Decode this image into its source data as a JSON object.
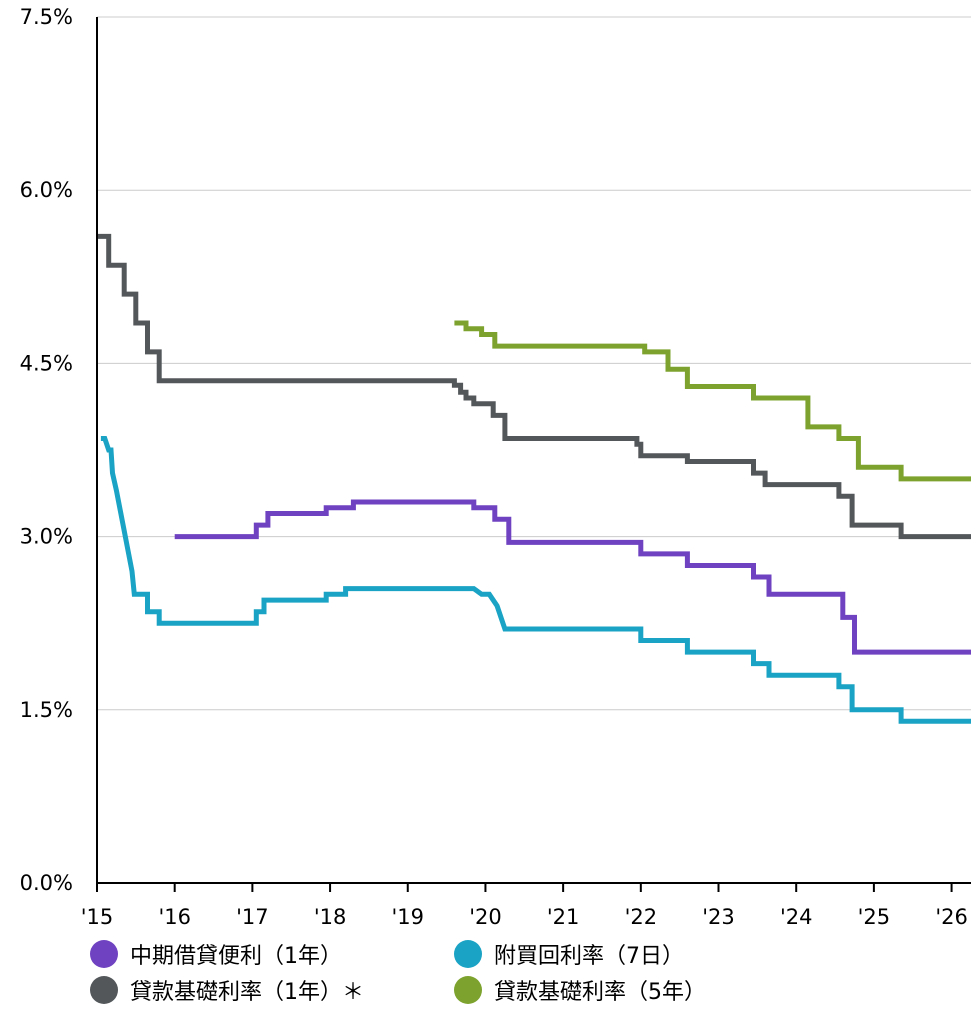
{
  "chart_data": {
    "type": "line",
    "ylim": [
      0,
      7.5
    ],
    "yticks": [
      {
        "value": 0,
        "label": "0.0%"
      },
      {
        "value": 1.5,
        "label": "1.5%"
      },
      {
        "value": 3.0,
        "label": "3.0%"
      },
      {
        "value": 4.5,
        "label": "4.5%"
      },
      {
        "value": 6.0,
        "label": "6.0%"
      },
      {
        "value": 7.5,
        "label": "7.5%"
      }
    ],
    "xlim": [
      2015.0,
      2026.25
    ],
    "xticks": [
      {
        "value": 2015,
        "label": "'15"
      },
      {
        "value": 2016,
        "label": "'16"
      },
      {
        "value": 2017,
        "label": "'17"
      },
      {
        "value": 2018,
        "label": "'18"
      },
      {
        "value": 2019,
        "label": "'19"
      },
      {
        "value": 2020,
        "label": "'20"
      },
      {
        "value": 2021,
        "label": "'21"
      },
      {
        "value": 2022,
        "label": "'22"
      },
      {
        "value": 2023,
        "label": "'23"
      },
      {
        "value": 2024,
        "label": "'24"
      },
      {
        "value": 2025,
        "label": "'25"
      },
      {
        "value": 2026,
        "label": "'26"
      }
    ],
    "grid": "horizontal",
    "legend_position": "bottom",
    "series": [
      {
        "name": "中期借貸便利（1年）",
        "color": "#6f42c1",
        "points": [
          [
            2016.0,
            3.0
          ],
          [
            2017.05,
            3.0
          ],
          [
            2017.05,
            3.1
          ],
          [
            2017.2,
            3.1
          ],
          [
            2017.2,
            3.2
          ],
          [
            2017.95,
            3.2
          ],
          [
            2017.95,
            3.25
          ],
          [
            2018.3,
            3.25
          ],
          [
            2018.3,
            3.3
          ],
          [
            2019.85,
            3.3
          ],
          [
            2019.85,
            3.25
          ],
          [
            2020.12,
            3.25
          ],
          [
            2020.12,
            3.15
          ],
          [
            2020.3,
            3.15
          ],
          [
            2020.3,
            2.95
          ],
          [
            2022.0,
            2.95
          ],
          [
            2022.0,
            2.85
          ],
          [
            2022.6,
            2.85
          ],
          [
            2022.6,
            2.75
          ],
          [
            2023.45,
            2.75
          ],
          [
            2023.45,
            2.65
          ],
          [
            2023.65,
            2.65
          ],
          [
            2023.65,
            2.5
          ],
          [
            2024.6,
            2.5
          ],
          [
            2024.6,
            2.3
          ],
          [
            2024.75,
            2.3
          ],
          [
            2024.75,
            2.0
          ],
          [
            2026.25,
            2.0
          ]
        ]
      },
      {
        "name": "附買回利率（7日）",
        "color": "#1aa3c4",
        "points": [
          [
            2015.05,
            3.85
          ],
          [
            2015.1,
            3.85
          ],
          [
            2015.15,
            3.75
          ],
          [
            2015.18,
            3.75
          ],
          [
            2015.2,
            3.55
          ],
          [
            2015.25,
            3.4
          ],
          [
            2015.45,
            2.7
          ],
          [
            2015.48,
            2.5
          ],
          [
            2015.65,
            2.5
          ],
          [
            2015.65,
            2.35
          ],
          [
            2015.8,
            2.35
          ],
          [
            2015.8,
            2.25
          ],
          [
            2017.05,
            2.25
          ],
          [
            2017.05,
            2.35
          ],
          [
            2017.15,
            2.35
          ],
          [
            2017.15,
            2.45
          ],
          [
            2017.95,
            2.45
          ],
          [
            2017.95,
            2.5
          ],
          [
            2018.2,
            2.5
          ],
          [
            2018.2,
            2.55
          ],
          [
            2019.85,
            2.55
          ],
          [
            2019.95,
            2.5
          ],
          [
            2020.05,
            2.5
          ],
          [
            2020.15,
            2.4
          ],
          [
            2020.25,
            2.2
          ],
          [
            2022.0,
            2.2
          ],
          [
            2022.0,
            2.1
          ],
          [
            2022.6,
            2.1
          ],
          [
            2022.6,
            2.0
          ],
          [
            2023.45,
            2.0
          ],
          [
            2023.45,
            1.9
          ],
          [
            2023.65,
            1.9
          ],
          [
            2023.65,
            1.8
          ],
          [
            2024.55,
            1.8
          ],
          [
            2024.55,
            1.7
          ],
          [
            2024.72,
            1.7
          ],
          [
            2024.72,
            1.5
          ],
          [
            2025.35,
            1.5
          ],
          [
            2025.35,
            1.4
          ],
          [
            2026.25,
            1.4
          ]
        ]
      },
      {
        "name": "貸款基礎利率（1年）",
        "color": "#54575a",
        "points": [
          [
            2015.0,
            5.6
          ],
          [
            2015.15,
            5.6
          ],
          [
            2015.15,
            5.35
          ],
          [
            2015.35,
            5.35
          ],
          [
            2015.35,
            5.1
          ],
          [
            2015.5,
            5.1
          ],
          [
            2015.5,
            4.85
          ],
          [
            2015.65,
            4.85
          ],
          [
            2015.65,
            4.6
          ],
          [
            2015.8,
            4.6
          ],
          [
            2015.8,
            4.35
          ],
          [
            2019.6,
            4.35
          ],
          [
            2019.6,
            4.31
          ],
          [
            2019.68,
            4.31
          ],
          [
            2019.68,
            4.25
          ],
          [
            2019.75,
            4.25
          ],
          [
            2019.75,
            4.2
          ],
          [
            2019.85,
            4.2
          ],
          [
            2019.85,
            4.15
          ],
          [
            2020.1,
            4.15
          ],
          [
            2020.1,
            4.05
          ],
          [
            2020.25,
            4.05
          ],
          [
            2020.25,
            3.85
          ],
          [
            2021.95,
            3.85
          ],
          [
            2021.95,
            3.8
          ],
          [
            2022.0,
            3.8
          ],
          [
            2022.0,
            3.7
          ],
          [
            2022.6,
            3.7
          ],
          [
            2022.6,
            3.65
          ],
          [
            2023.45,
            3.65
          ],
          [
            2023.45,
            3.55
          ],
          [
            2023.6,
            3.55
          ],
          [
            2023.6,
            3.45
          ],
          [
            2024.55,
            3.45
          ],
          [
            2024.55,
            3.35
          ],
          [
            2024.72,
            3.35
          ],
          [
            2024.72,
            3.1
          ],
          [
            2025.35,
            3.1
          ],
          [
            2025.35,
            3.0
          ],
          [
            2026.25,
            3.0
          ]
        ]
      },
      {
        "name": "貸款基礎利率（5年）",
        "color": "#7da32e",
        "points": [
          [
            2019.6,
            4.85
          ],
          [
            2019.75,
            4.85
          ],
          [
            2019.75,
            4.8
          ],
          [
            2019.95,
            4.8
          ],
          [
            2019.95,
            4.75
          ],
          [
            2020.12,
            4.75
          ],
          [
            2020.12,
            4.65
          ],
          [
            2022.05,
            4.65
          ],
          [
            2022.05,
            4.6
          ],
          [
            2022.35,
            4.6
          ],
          [
            2022.35,
            4.45
          ],
          [
            2022.6,
            4.45
          ],
          [
            2022.6,
            4.3
          ],
          [
            2023.45,
            4.3
          ],
          [
            2023.45,
            4.2
          ],
          [
            2024.15,
            4.2
          ],
          [
            2024.15,
            3.95
          ],
          [
            2024.55,
            3.95
          ],
          [
            2024.55,
            3.85
          ],
          [
            2024.8,
            3.85
          ],
          [
            2024.8,
            3.6
          ],
          [
            2025.35,
            3.6
          ],
          [
            2025.35,
            3.5
          ],
          [
            2026.25,
            3.5
          ]
        ]
      }
    ]
  },
  "legend": [
    {
      "label": "中期借貸便利（1年）",
      "color": "#6f42c1"
    },
    {
      "label": "附買回利率（7日）",
      "color": "#1aa3c4"
    },
    {
      "label": "貸款基礎利率（1年）＊",
      "color": "#54575a"
    },
    {
      "label": "貸款基礎利率（5年）",
      "color": "#7da32e"
    }
  ]
}
